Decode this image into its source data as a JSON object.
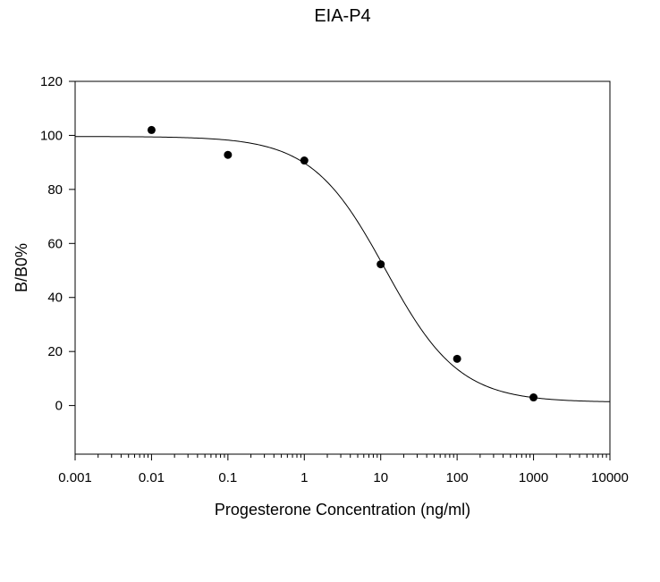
{
  "chart_data": {
    "type": "scatter",
    "title": "EIA-P4",
    "xlabel": "Progesterone Concentration (ng/ml)",
    "ylabel": "B/B0%",
    "x_scale": "log",
    "xlim": [
      0.001,
      10000
    ],
    "ylim": [
      -18,
      120
    ],
    "x_ticks": [
      0.001,
      0.01,
      0.1,
      1,
      10,
      100,
      1000,
      10000
    ],
    "x_tick_labels": [
      "0.001",
      "0.01",
      "0.1",
      "1",
      "10",
      "100",
      "1000",
      "10000"
    ],
    "y_ticks": [
      0,
      20,
      40,
      60,
      80,
      100,
      120
    ],
    "y_tick_labels": [
      "0",
      "20",
      "40",
      "60",
      "80",
      "100",
      "120"
    ],
    "grid": false,
    "legend": "none",
    "points": [
      {
        "x": 0.01,
        "y": 102
      },
      {
        "x": 0.1,
        "y": 92.8
      },
      {
        "x": 1,
        "y": 90.7
      },
      {
        "x": 10,
        "y": 52.3
      },
      {
        "x": 100,
        "y": 17.3
      },
      {
        "x": 1000,
        "y": 3
      }
    ],
    "fit_curve": {
      "model": "4PL",
      "top": 99.6,
      "bottom": 1.2,
      "ec50": 11.5,
      "hill": 0.9
    },
    "colors": {
      "marker": "#000000",
      "line": "#000000",
      "axis": "#000000"
    }
  }
}
